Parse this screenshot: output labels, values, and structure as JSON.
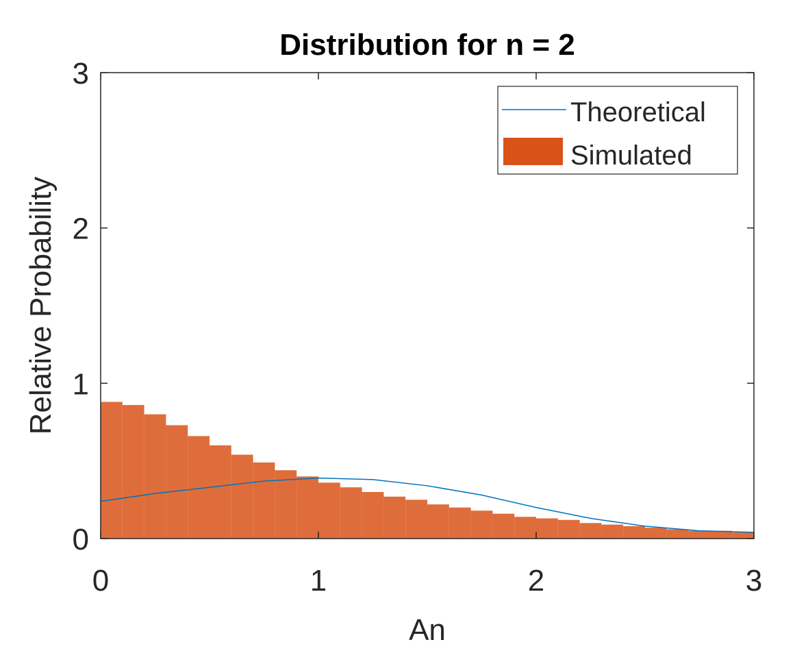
{
  "chart_data": {
    "type": "bar",
    "title": "Distribution for n = 2",
    "xlabel": "An",
    "ylabel": "Relative Probability",
    "xlim": [
      0,
      3
    ],
    "ylim": [
      0,
      3
    ],
    "xticks": [
      0,
      1,
      2,
      3
    ],
    "yticks": [
      0,
      1,
      2,
      3
    ],
    "xtick_labels": [
      "0",
      "1",
      "2",
      "3"
    ],
    "ytick_labels": [
      "0",
      "1",
      "2",
      "3"
    ],
    "grid": false,
    "legend_position": "top-right",
    "colors": {
      "theoretical": "#0072BD",
      "simulated": "#D95319"
    },
    "series": [
      {
        "name": "Theoretical",
        "type": "line",
        "x": [
          0,
          0.25,
          0.5,
          0.75,
          1.0,
          1.25,
          1.5,
          1.75,
          2.0,
          2.25,
          2.5,
          2.75,
          3.0
        ],
        "y": [
          0.24,
          0.29,
          0.33,
          0.37,
          0.39,
          0.38,
          0.34,
          0.28,
          0.2,
          0.13,
          0.08,
          0.05,
          0.04
        ]
      },
      {
        "name": "Simulated",
        "type": "bar",
        "x": [
          0.05,
          0.15,
          0.25,
          0.35,
          0.45,
          0.55,
          0.65,
          0.75,
          0.85,
          0.95,
          1.05,
          1.15,
          1.25,
          1.35,
          1.45,
          1.55,
          1.65,
          1.75,
          1.85,
          1.95,
          2.05,
          2.15,
          2.25,
          2.35,
          2.45,
          2.55,
          2.65,
          2.75,
          2.85,
          2.95
        ],
        "y": [
          0.88,
          0.86,
          0.8,
          0.73,
          0.66,
          0.6,
          0.54,
          0.49,
          0.44,
          0.4,
          0.36,
          0.33,
          0.3,
          0.27,
          0.25,
          0.22,
          0.2,
          0.18,
          0.16,
          0.14,
          0.13,
          0.12,
          0.1,
          0.09,
          0.08,
          0.07,
          0.06,
          0.05,
          0.05,
          0.04
        ]
      }
    ]
  }
}
